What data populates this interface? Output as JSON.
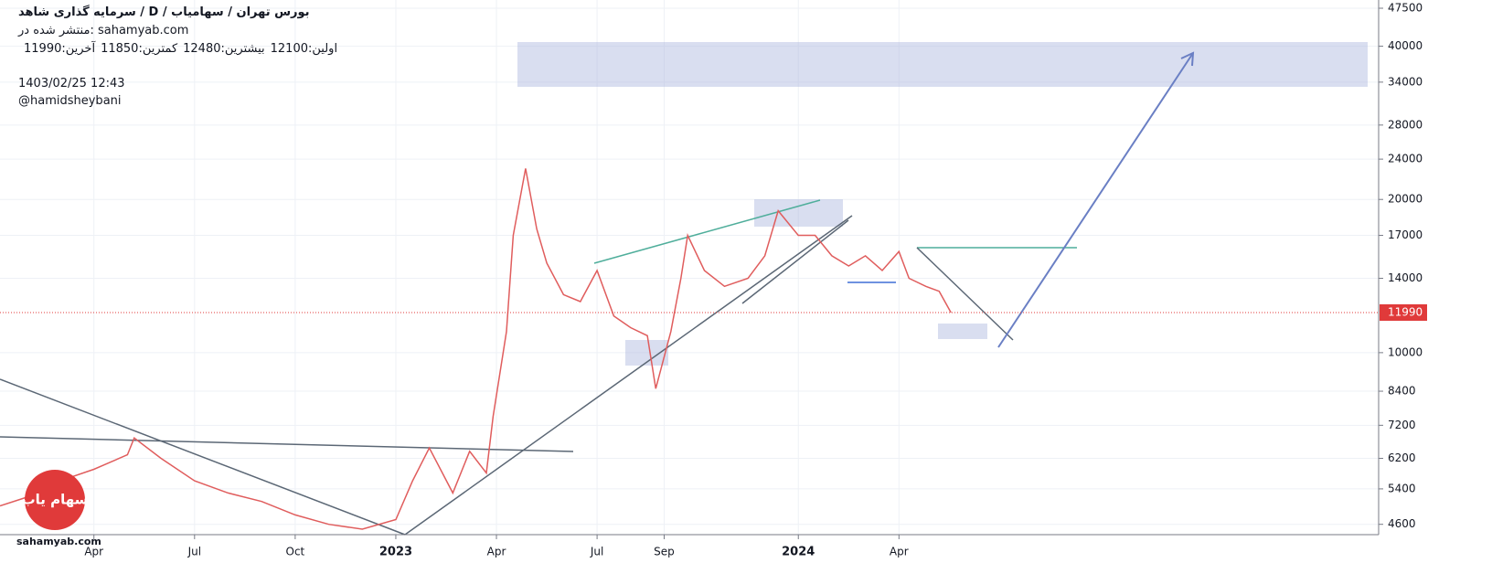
{
  "header": {
    "title": "سرمایه گذاری شاهد / D / بورس تهران / سهامیاب",
    "published": "منتشر شده در: sahamyab.com",
    "ohlc": [
      {
        "label": "اولین:",
        "value": 12100
      },
      {
        "label": "بیشترین:",
        "value": 12480
      },
      {
        "label": "کمترین:",
        "value": 11850
      },
      {
        "label": "آخرین:",
        "value": 11990
      }
    ],
    "date": "1403/02/25 12:43",
    "author": "@hamidsheybani"
  },
  "logo": {
    "text": "سهام یاب",
    "site": "sahamyab.com"
  },
  "chart_data": {
    "type": "line",
    "log_scale": true,
    "grid": true,
    "color": "#e05d5d",
    "x": [
      0.2,
      1,
      2,
      3,
      4,
      4.2,
      5,
      6,
      7,
      8,
      9,
      10,
      11,
      12,
      12.5,
      13,
      13.7,
      14.2,
      14.7,
      14.9,
      15.3,
      15.5,
      15.87,
      16.2,
      16.5,
      17,
      17.5,
      18,
      18.5,
      19,
      19.5,
      19.75,
      20.2,
      20.5,
      20.7,
      21.2,
      21.8,
      22.5,
      23,
      23.4,
      24,
      24.5,
      25,
      25.5,
      26,
      26.5,
      27,
      27.3,
      27.8,
      28.2,
      28.55
    ],
    "values": [
      5000,
      5200,
      5600,
      5900,
      6300,
      6800,
      6200,
      5600,
      5300,
      5100,
      4800,
      4600,
      4500,
      4700,
      5600,
      6500,
      5300,
      6400,
      5800,
      7500,
      11000,
      17000,
      23000,
      17500,
      15000,
      13000,
      12600,
      14500,
      11800,
      11200,
      10800,
      8500,
      11000,
      14000,
      17000,
      14500,
      13500,
      14000,
      15500,
      19000,
      17000,
      17000,
      15500,
      14800,
      15500,
      14500,
      15800,
      14000,
      13500,
      13200,
      11990
    ],
    "xlim": [
      0.2,
      41.3
    ],
    "xticks": [
      {
        "value": 3,
        "label": "Apr"
      },
      {
        "value": 6,
        "label": "Jul"
      },
      {
        "value": 9,
        "label": "Oct"
      },
      {
        "value": 12,
        "label": "2023"
      },
      {
        "value": 15,
        "label": "Apr"
      },
      {
        "value": 18,
        "label": "Jul"
      },
      {
        "value": 20,
        "label": "Sep"
      },
      {
        "value": 24,
        "label": "2024"
      },
      {
        "value": 27,
        "label": "Apr"
      }
    ],
    "ylim": [
      4390,
      49300
    ],
    "yticks": [
      4600,
      5400,
      6200,
      7200,
      8400,
      10000,
      14000,
      17000,
      20000,
      24000,
      28000,
      34000,
      40000,
      47500
    ],
    "current_price": 11990
  }
}
